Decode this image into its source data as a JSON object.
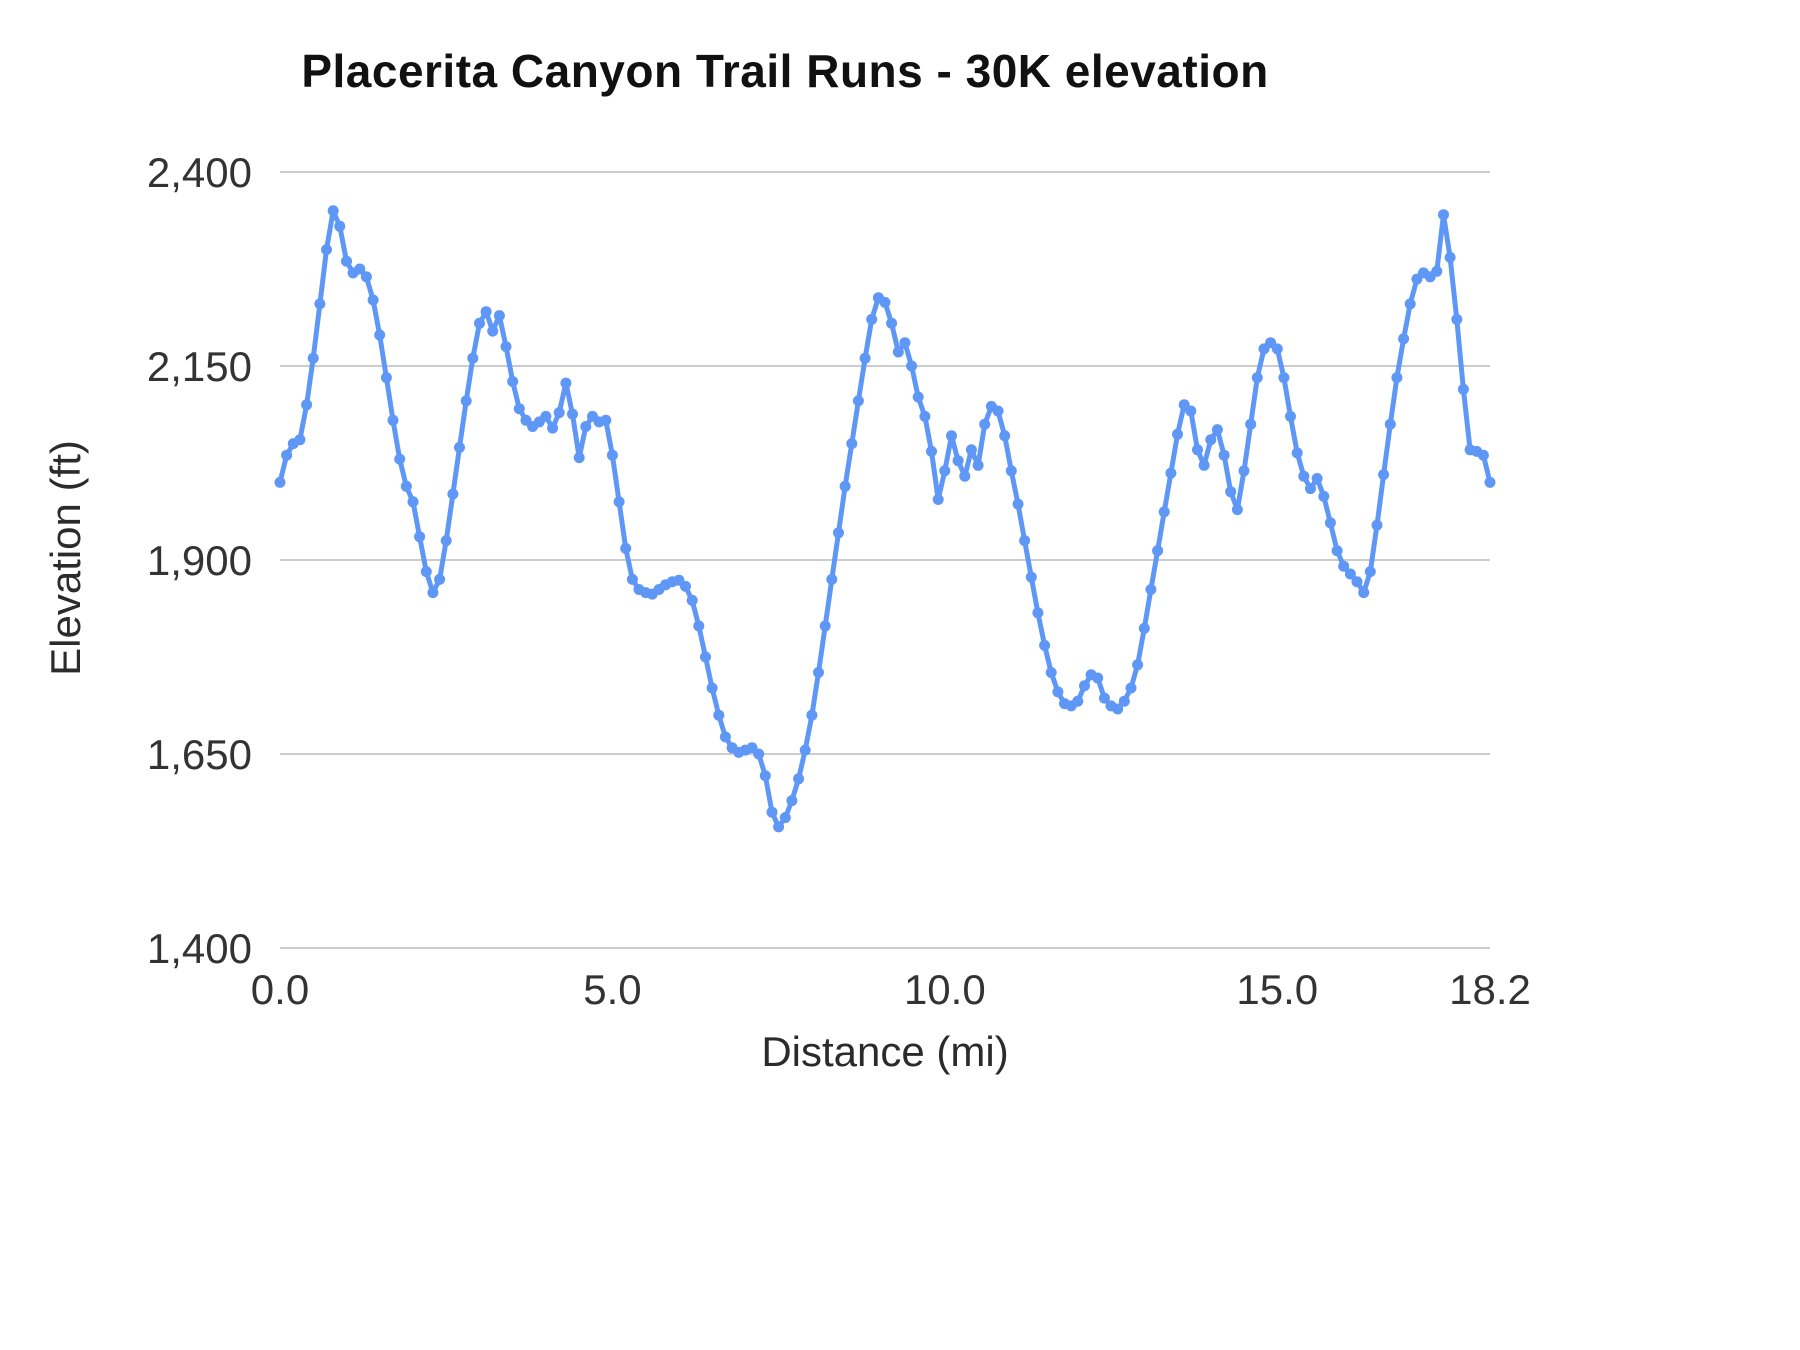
{
  "chart_data": {
    "type": "line",
    "title": "Placerita Canyon Trail Runs - 30K elevation",
    "xlabel": "Distance (mi)",
    "ylabel": "Elevation (ft)",
    "xlim": [
      0,
      18.2
    ],
    "ylim": [
      1400,
      2400
    ],
    "grid": "horizontal",
    "legend": "none",
    "line_color": "#5e97f6",
    "gridline_color": "#cccccc",
    "x_tick_values": [
      0,
      5,
      10,
      15,
      18.2
    ],
    "x_tick_labels": [
      "0.0",
      "5.0",
      "10.0",
      "15.0",
      "18.2"
    ],
    "y_tick_values": [
      1400,
      1650,
      1900,
      2150,
      2400
    ],
    "y_tick_labels": [
      "1,400",
      "1,650",
      "1,900",
      "2,150",
      "2,400"
    ],
    "points": [
      [
        0.0,
        2000
      ],
      [
        0.1,
        2035
      ],
      [
        0.2,
        2050
      ],
      [
        0.3,
        2055
      ],
      [
        0.4,
        2100
      ],
      [
        0.5,
        2160
      ],
      [
        0.6,
        2230
      ],
      [
        0.7,
        2300
      ],
      [
        0.8,
        2350
      ],
      [
        0.9,
        2330
      ],
      [
        1.0,
        2285
      ],
      [
        1.1,
        2270
      ],
      [
        1.2,
        2275
      ],
      [
        1.3,
        2265
      ],
      [
        1.4,
        2235
      ],
      [
        1.5,
        2190
      ],
      [
        1.6,
        2135
      ],
      [
        1.7,
        2080
      ],
      [
        1.8,
        2030
      ],
      [
        1.9,
        1995
      ],
      [
        2.0,
        1975
      ],
      [
        2.1,
        1930
      ],
      [
        2.2,
        1885
      ],
      [
        2.3,
        1858
      ],
      [
        2.4,
        1875
      ],
      [
        2.5,
        1925
      ],
      [
        2.6,
        1985
      ],
      [
        2.7,
        2045
      ],
      [
        2.8,
        2105
      ],
      [
        2.9,
        2160
      ],
      [
        3.0,
        2205
      ],
      [
        3.1,
        2220
      ],
      [
        3.2,
        2195
      ],
      [
        3.3,
        2215
      ],
      [
        3.4,
        2175
      ],
      [
        3.5,
        2130
      ],
      [
        3.6,
        2095
      ],
      [
        3.7,
        2080
      ],
      [
        3.8,
        2072
      ],
      [
        3.9,
        2078
      ],
      [
        4.0,
        2085
      ],
      [
        4.1,
        2070
      ],
      [
        4.2,
        2090
      ],
      [
        4.3,
        2128
      ],
      [
        4.4,
        2088
      ],
      [
        4.5,
        2032
      ],
      [
        4.6,
        2072
      ],
      [
        4.7,
        2085
      ],
      [
        4.8,
        2078
      ],
      [
        4.9,
        2080
      ],
      [
        5.0,
        2035
      ],
      [
        5.1,
        1975
      ],
      [
        5.2,
        1915
      ],
      [
        5.3,
        1875
      ],
      [
        5.4,
        1862
      ],
      [
        5.5,
        1858
      ],
      [
        5.6,
        1856
      ],
      [
        5.7,
        1862
      ],
      [
        5.8,
        1868
      ],
      [
        5.9,
        1872
      ],
      [
        6.0,
        1874
      ],
      [
        6.1,
        1866
      ],
      [
        6.2,
        1848
      ],
      [
        6.3,
        1815
      ],
      [
        6.4,
        1775
      ],
      [
        6.5,
        1735
      ],
      [
        6.6,
        1700
      ],
      [
        6.7,
        1672
      ],
      [
        6.8,
        1658
      ],
      [
        6.9,
        1652
      ],
      [
        7.0,
        1655
      ],
      [
        7.1,
        1658
      ],
      [
        7.2,
        1650
      ],
      [
        7.3,
        1622
      ],
      [
        7.4,
        1575
      ],
      [
        7.5,
        1556
      ],
      [
        7.6,
        1568
      ],
      [
        7.7,
        1590
      ],
      [
        7.8,
        1618
      ],
      [
        7.9,
        1655
      ],
      [
        8.0,
        1700
      ],
      [
        8.1,
        1755
      ],
      [
        8.2,
        1815
      ],
      [
        8.3,
        1875
      ],
      [
        8.4,
        1935
      ],
      [
        8.5,
        1995
      ],
      [
        8.6,
        2050
      ],
      [
        8.7,
        2105
      ],
      [
        8.8,
        2160
      ],
      [
        8.9,
        2210
      ],
      [
        9.0,
        2238
      ],
      [
        9.1,
        2232
      ],
      [
        9.2,
        2205
      ],
      [
        9.3,
        2168
      ],
      [
        9.4,
        2180
      ],
      [
        9.5,
        2150
      ],
      [
        9.6,
        2110
      ],
      [
        9.7,
        2085
      ],
      [
        9.8,
        2040
      ],
      [
        9.9,
        1978
      ],
      [
        10.0,
        2015
      ],
      [
        10.1,
        2060
      ],
      [
        10.2,
        2028
      ],
      [
        10.3,
        2008
      ],
      [
        10.4,
        2042
      ],
      [
        10.5,
        2022
      ],
      [
        10.6,
        2075
      ],
      [
        10.7,
        2098
      ],
      [
        10.8,
        2092
      ],
      [
        10.9,
        2060
      ],
      [
        11.0,
        2015
      ],
      [
        11.1,
        1972
      ],
      [
        11.2,
        1925
      ],
      [
        11.3,
        1878
      ],
      [
        11.4,
        1832
      ],
      [
        11.5,
        1790
      ],
      [
        11.6,
        1755
      ],
      [
        11.7,
        1730
      ],
      [
        11.8,
        1715
      ],
      [
        11.9,
        1712
      ],
      [
        12.0,
        1718
      ],
      [
        12.1,
        1738
      ],
      [
        12.2,
        1752
      ],
      [
        12.3,
        1748
      ],
      [
        12.4,
        1722
      ],
      [
        12.5,
        1712
      ],
      [
        12.6,
        1708
      ],
      [
        12.7,
        1718
      ],
      [
        12.8,
        1735
      ],
      [
        12.9,
        1765
      ],
      [
        13.0,
        1812
      ],
      [
        13.1,
        1862
      ],
      [
        13.2,
        1912
      ],
      [
        13.3,
        1962
      ],
      [
        13.4,
        2012
      ],
      [
        13.5,
        2062
      ],
      [
        13.6,
        2100
      ],
      [
        13.7,
        2092
      ],
      [
        13.8,
        2042
      ],
      [
        13.9,
        2022
      ],
      [
        14.0,
        2055
      ],
      [
        14.1,
        2068
      ],
      [
        14.2,
        2035
      ],
      [
        14.3,
        1988
      ],
      [
        14.4,
        1965
      ],
      [
        14.5,
        2015
      ],
      [
        14.6,
        2075
      ],
      [
        14.7,
        2135
      ],
      [
        14.8,
        2172
      ],
      [
        14.9,
        2180
      ],
      [
        15.0,
        2172
      ],
      [
        15.1,
        2135
      ],
      [
        15.2,
        2085
      ],
      [
        15.3,
        2038
      ],
      [
        15.4,
        2008
      ],
      [
        15.5,
        1992
      ],
      [
        15.6,
        2005
      ],
      [
        15.7,
        1982
      ],
      [
        15.8,
        1948
      ],
      [
        15.9,
        1912
      ],
      [
        16.0,
        1892
      ],
      [
        16.1,
        1882
      ],
      [
        16.2,
        1872
      ],
      [
        16.3,
        1858
      ],
      [
        16.4,
        1885
      ],
      [
        16.5,
        1945
      ],
      [
        16.6,
        2010
      ],
      [
        16.7,
        2075
      ],
      [
        16.8,
        2135
      ],
      [
        16.9,
        2185
      ],
      [
        17.0,
        2230
      ],
      [
        17.1,
        2262
      ],
      [
        17.2,
        2270
      ],
      [
        17.3,
        2265
      ],
      [
        17.4,
        2272
      ],
      [
        17.5,
        2345
      ],
      [
        17.6,
        2290
      ],
      [
        17.7,
        2210
      ],
      [
        17.8,
        2120
      ],
      [
        17.9,
        2042
      ],
      [
        18.0,
        2040
      ],
      [
        18.1,
        2035
      ],
      [
        18.2,
        2000
      ]
    ]
  }
}
